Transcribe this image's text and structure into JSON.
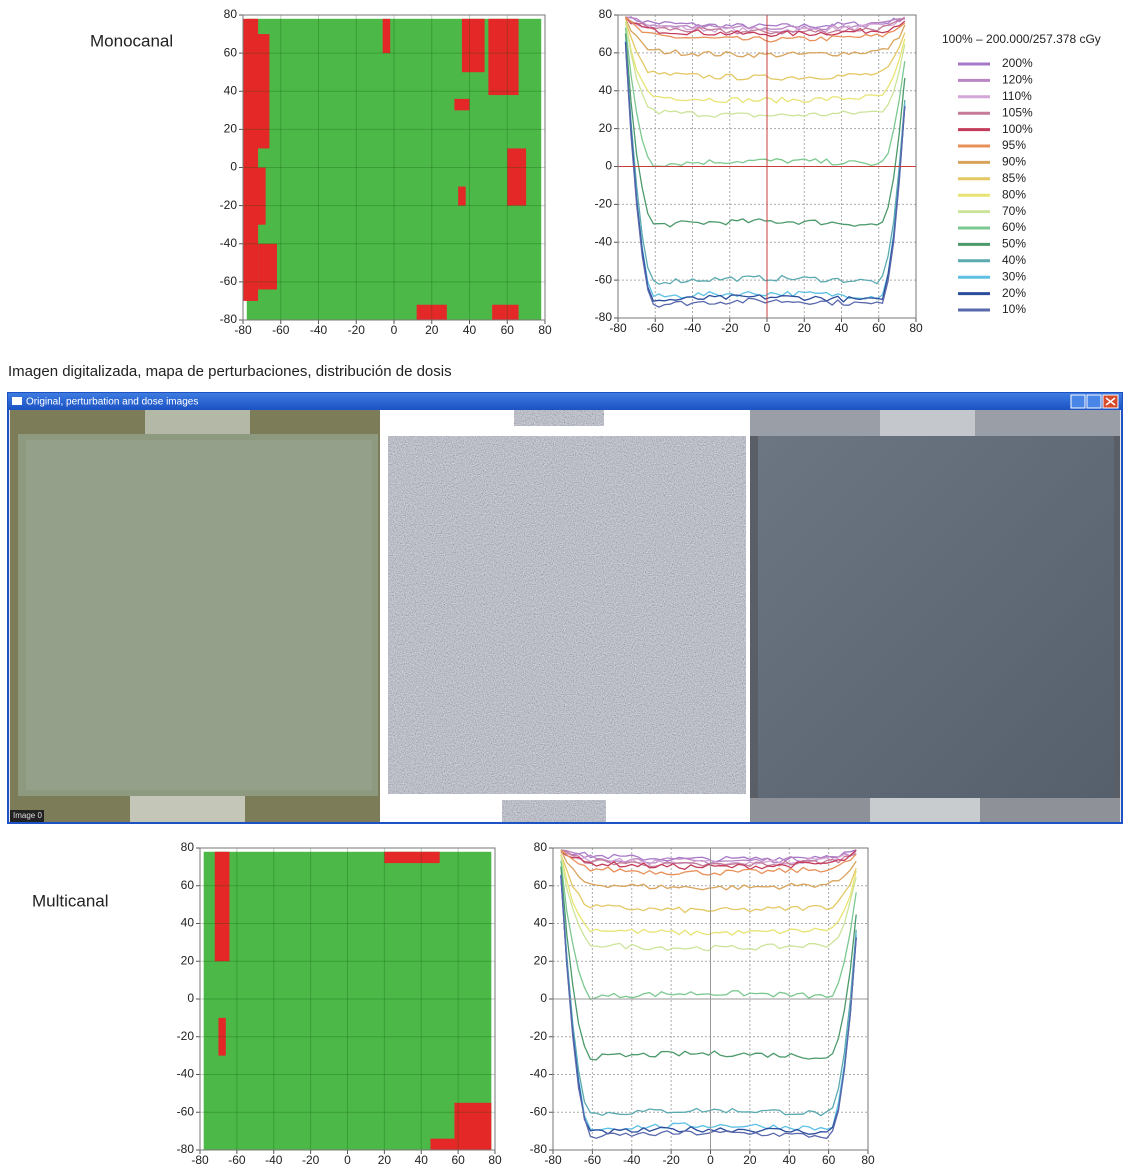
{
  "caption": "Imagen digitalizada, mapa de perturbaciones, distribución de dosis",
  "rows": [
    {
      "label": "Monocanal"
    },
    {
      "label": "Multicanal"
    }
  ],
  "window": {
    "title": "Original, perturbation and dose images",
    "status": "Image 0"
  },
  "legend": {
    "title": "100% – 200.000/257.378 cGy",
    "entries": [
      {
        "label": "200%",
        "color": "#a678c8"
      },
      {
        "label": "120%",
        "color": "#b886c4"
      },
      {
        "label": "110%",
        "color": "#d2a6d6"
      },
      {
        "label": "105%",
        "color": "#c47a98"
      },
      {
        "label": "100%",
        "color": "#c43c5c"
      },
      {
        "label": "95%",
        "color": "#e89058"
      },
      {
        "label": "90%",
        "color": "#d8a45c"
      },
      {
        "label": "85%",
        "color": "#e4c864"
      },
      {
        "label": "80%",
        "color": "#e8e474"
      },
      {
        "label": "70%",
        "color": "#cce49a"
      },
      {
        "label": "60%",
        "color": "#7cc890"
      },
      {
        "label": "50%",
        "color": "#4c9a6c"
      },
      {
        "label": "40%",
        "color": "#5aaab0"
      },
      {
        "label": "30%",
        "color": "#5cc0e4"
      },
      {
        "label": "20%",
        "color": "#2c4c9c"
      },
      {
        "label": "10%",
        "color": "#5a68ac"
      }
    ]
  },
  "chart_data": [
    {
      "type": "gamma-map",
      "xlim": [
        -80,
        80
      ],
      "ylim": [
        -80,
        80
      ],
      "xticks": [
        -80,
        -60,
        -40,
        -20,
        0,
        20,
        40,
        60,
        80
      ],
      "yticks": [
        -80,
        -60,
        -40,
        -20,
        0,
        20,
        40,
        60,
        80
      ],
      "grid": true,
      "pass_color": "#4cb848",
      "fail_color": "#e42828"
    },
    {
      "type": "isodose",
      "xlim": [
        -80,
        80
      ],
      "ylim": [
        -80,
        80
      ],
      "xticks": [
        -80,
        -60,
        -40,
        -20,
        0,
        20,
        40,
        60,
        80
      ],
      "yticks": [
        -80,
        -60,
        -40,
        -20,
        0,
        20,
        40,
        60,
        80
      ],
      "grid": true,
      "crosshair_color": "#c83c3c"
    },
    {
      "type": "gamma-map",
      "xlim": [
        -80,
        80
      ],
      "ylim": [
        -80,
        80
      ],
      "xticks": [
        -80,
        -60,
        -40,
        -20,
        0,
        20,
        40,
        60,
        80
      ],
      "yticks": [
        -80,
        -60,
        -40,
        -20,
        0,
        20,
        40,
        60,
        80
      ],
      "grid": true,
      "pass_color": "#4cb848",
      "fail_color": "#e42828"
    },
    {
      "type": "isodose",
      "xlim": [
        -80,
        80
      ],
      "ylim": [
        -80,
        80
      ],
      "xticks": [
        -80,
        -60,
        -40,
        -20,
        0,
        20,
        40,
        60,
        80
      ],
      "yticks": [
        -80,
        -60,
        -40,
        -20,
        0,
        20,
        40,
        60,
        80
      ],
      "grid": true,
      "crosshair_color": "#9a9a9a"
    }
  ]
}
